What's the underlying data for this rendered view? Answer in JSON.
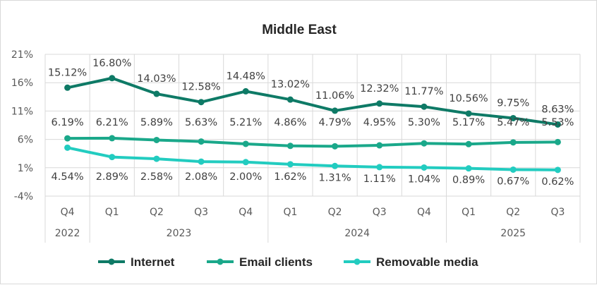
{
  "chart_data": {
    "type": "line",
    "title": "Middle East",
    "xlabel": "",
    "ylabel": "",
    "ylim": [
      -4,
      21
    ],
    "y_ticks": [
      "21%",
      "16%",
      "11%",
      "6%",
      "1%",
      "-4%"
    ],
    "y_tick_values": [
      21,
      16,
      11,
      6,
      1,
      -4
    ],
    "grid": true,
    "legend_position": "bottom",
    "x_quarters": [
      "Q4",
      "Q1",
      "Q2",
      "Q3",
      "Q4",
      "Q1",
      "Q2",
      "Q3",
      "Q4",
      "Q1",
      "Q2",
      "Q3"
    ],
    "x_years": [
      {
        "label": "2022",
        "start": 0,
        "end": 0
      },
      {
        "label": "2023",
        "start": 1,
        "end": 4
      },
      {
        "label": "2024",
        "start": 5,
        "end": 8
      },
      {
        "label": "2025",
        "start": 9,
        "end": 11
      }
    ],
    "series": [
      {
        "name": "Internet",
        "color": "#0e7a66",
        "values": [
          15.12,
          16.8,
          14.03,
          12.58,
          14.48,
          13.02,
          11.06,
          12.32,
          11.77,
          10.56,
          9.75,
          8.63
        ],
        "labels": [
          "15.12%",
          "16.80%",
          "14.03%",
          "12.58%",
          "14.48%",
          "13.02%",
          "11.06%",
          "12.32%",
          "11.77%",
          "10.56%",
          "9.75%",
          "8.63%"
        ]
      },
      {
        "name": "Email clients",
        "color": "#1aa88a",
        "values": [
          6.19,
          6.21,
          5.89,
          5.63,
          5.21,
          4.86,
          4.79,
          4.95,
          5.3,
          5.17,
          5.47,
          5.53
        ],
        "labels": [
          "6.19%",
          "6.21%",
          "5.89%",
          "5.63%",
          "5.21%",
          "4.86%",
          "4.79%",
          "4.95%",
          "5.30%",
          "5.17%",
          "5.47%",
          "5.53%"
        ]
      },
      {
        "name": "Removable media",
        "color": "#22ccc0",
        "values": [
          4.54,
          2.89,
          2.58,
          2.08,
          2.0,
          1.62,
          1.31,
          1.11,
          1.04,
          0.89,
          0.67,
          0.62
        ],
        "labels": [
          "4.54%",
          "2.89%",
          "2.58%",
          "2.08%",
          "2.00%",
          "1.62%",
          "1.31%",
          "1.11%",
          "1.04%",
          "0.89%",
          "0.67%",
          "0.62%"
        ]
      }
    ]
  }
}
